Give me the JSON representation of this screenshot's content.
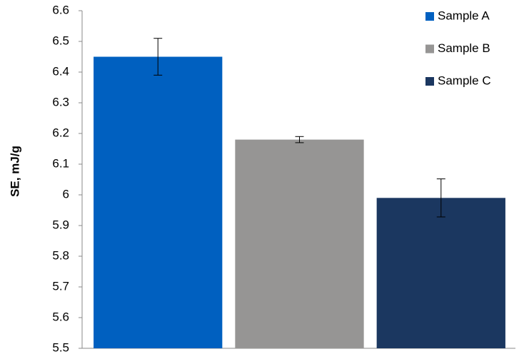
{
  "chart_data": {
    "type": "bar",
    "y_label": "SE, mJ/g",
    "categories": [
      null
    ],
    "series": [
      {
        "name": "Sample A",
        "color": "#0060c0",
        "values": [
          6.45
        ],
        "errors": [
          0.06
        ]
      },
      {
        "name": "Sample B",
        "color": "#969594",
        "values": [
          6.18
        ],
        "errors": [
          0.01
        ]
      },
      {
        "name": "Sample C",
        "color": "#1b3760",
        "values": [
          5.99
        ],
        "errors": [
          0.062
        ]
      }
    ],
    "ylim": [
      5.5,
      6.6
    ],
    "yticks": [
      5.5,
      5.6,
      5.7,
      5.8,
      5.9,
      6,
      6.1,
      6.2,
      6.3,
      6.4,
      6.5,
      6.6
    ],
    "grid": false,
    "legend": "right"
  }
}
